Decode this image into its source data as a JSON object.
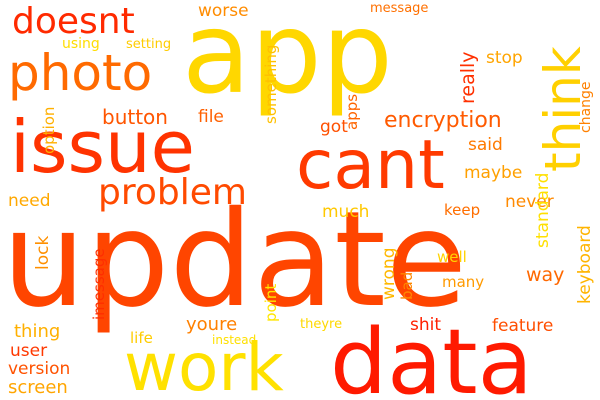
{
  "words": [
    {
      "text": "update",
      "color": "#ff4500"
    },
    {
      "text": "app",
      "color": "#ffd700"
    },
    {
      "text": "data",
      "color": "#ff1a00"
    },
    {
      "text": "work",
      "color": "#ffe100"
    },
    {
      "text": "issue",
      "color": "#ff3300"
    },
    {
      "text": "cant",
      "color": "#ff3a00"
    },
    {
      "text": "think",
      "color": "#ffd000"
    },
    {
      "text": "photo",
      "color": "#ff6a00"
    },
    {
      "text": "doesnt",
      "color": "#ff2a00"
    },
    {
      "text": "problem",
      "color": "#ff4a00"
    },
    {
      "text": "encryption",
      "color": "#ff5a00"
    },
    {
      "text": "button",
      "color": "#ff5500"
    },
    {
      "text": "file",
      "color": "#ff6000"
    },
    {
      "text": "worse",
      "color": "#ff8c00"
    },
    {
      "text": "message",
      "color": "#ff7000"
    },
    {
      "text": "something",
      "color": "#ffc000"
    },
    {
      "text": "using",
      "color": "#ffdd00"
    },
    {
      "text": "setting",
      "color": "#ffcc00"
    },
    {
      "text": "stop",
      "color": "#ffa500"
    },
    {
      "text": "change",
      "color": "#ff8000"
    },
    {
      "text": "really",
      "color": "#ff3000"
    },
    {
      "text": "got",
      "color": "#ff5000"
    },
    {
      "text": "apps",
      "color": "#ff6500"
    },
    {
      "text": "said",
      "color": "#ff7a00"
    },
    {
      "text": "standard",
      "color": "#ffe000"
    },
    {
      "text": "option",
      "color": "#ffb000"
    },
    {
      "text": "maybe",
      "color": "#ffa000"
    },
    {
      "text": "need",
      "color": "#ffa800"
    },
    {
      "text": "much",
      "color": "#ffc800"
    },
    {
      "text": "never",
      "color": "#ff8a00"
    },
    {
      "text": "keep",
      "color": "#ff6e00"
    },
    {
      "text": "keyboard",
      "color": "#ffb400"
    },
    {
      "text": "lock",
      "color": "#ff9000"
    },
    {
      "text": "imessage",
      "color": "#ff2e00"
    },
    {
      "text": "point",
      "color": "#ffe600"
    },
    {
      "text": "wrong",
      "color": "#ffb800"
    },
    {
      "text": "bad",
      "color": "#ff8800"
    },
    {
      "text": "well",
      "color": "#ffd200"
    },
    {
      "text": "many",
      "color": "#ff9a00"
    },
    {
      "text": "way",
      "color": "#ff6800"
    },
    {
      "text": "thing",
      "color": "#ffb000"
    },
    {
      "text": "youre",
      "color": "#ff8000"
    },
    {
      "text": "life",
      "color": "#ffcc00"
    },
    {
      "text": "instead",
      "color": "#ffe000"
    },
    {
      "text": "theyre",
      "color": "#ffd800"
    },
    {
      "text": "shit",
      "color": "#ff2000"
    },
    {
      "text": "feature",
      "color": "#ff4e00"
    },
    {
      "text": "user",
      "color": "#ff3800"
    },
    {
      "text": "version",
      "color": "#ff5200"
    },
    {
      "text": "screen",
      "color": "#ffa500"
    }
  ]
}
